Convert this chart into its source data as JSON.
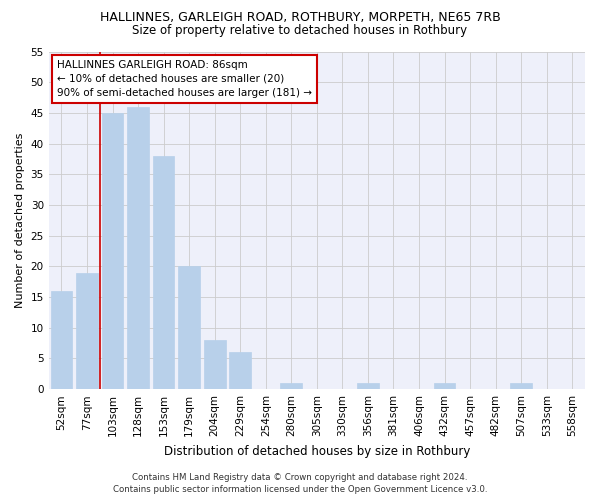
{
  "title": "HALLINNES, GARLEIGH ROAD, ROTHBURY, MORPETH, NE65 7RB",
  "subtitle": "Size of property relative to detached houses in Rothbury",
  "xlabel": "Distribution of detached houses by size in Rothbury",
  "ylabel": "Number of detached properties",
  "categories": [
    "52sqm",
    "77sqm",
    "103sqm",
    "128sqm",
    "153sqm",
    "179sqm",
    "204sqm",
    "229sqm",
    "254sqm",
    "280sqm",
    "305sqm",
    "330sqm",
    "356sqm",
    "381sqm",
    "406sqm",
    "432sqm",
    "457sqm",
    "482sqm",
    "507sqm",
    "533sqm",
    "558sqm"
  ],
  "values": [
    16,
    19,
    45,
    46,
    38,
    20,
    8,
    6,
    0,
    1,
    0,
    0,
    1,
    0,
    0,
    1,
    0,
    0,
    1,
    0,
    0
  ],
  "bar_color": "#b8d0ea",
  "bar_edge_color": "#b8d0ea",
  "grid_color": "#cccccc",
  "background_color": "#ffffff",
  "plot_bg_color": "#eef0fa",
  "vline_color": "#cc0000",
  "vline_x_index": 1.5,
  "annotation_box_text": "HALLINNES GARLEIGH ROAD: 86sqm\n← 10% of detached houses are smaller (20)\n90% of semi-detached houses are larger (181) →",
  "annotation_box_color": "#cc0000",
  "ylim": [
    0,
    55
  ],
  "yticks": [
    0,
    5,
    10,
    15,
    20,
    25,
    30,
    35,
    40,
    45,
    50,
    55
  ],
  "footer_line1": "Contains HM Land Registry data © Crown copyright and database right 2024.",
  "footer_line2": "Contains public sector information licensed under the Open Government Licence v3.0.",
  "title_fontsize": 9,
  "subtitle_fontsize": 8.5,
  "xlabel_fontsize": 8.5,
  "ylabel_fontsize": 8,
  "tick_fontsize": 7.5,
  "annot_fontsize": 7.5,
  "footer_fontsize": 6.2
}
